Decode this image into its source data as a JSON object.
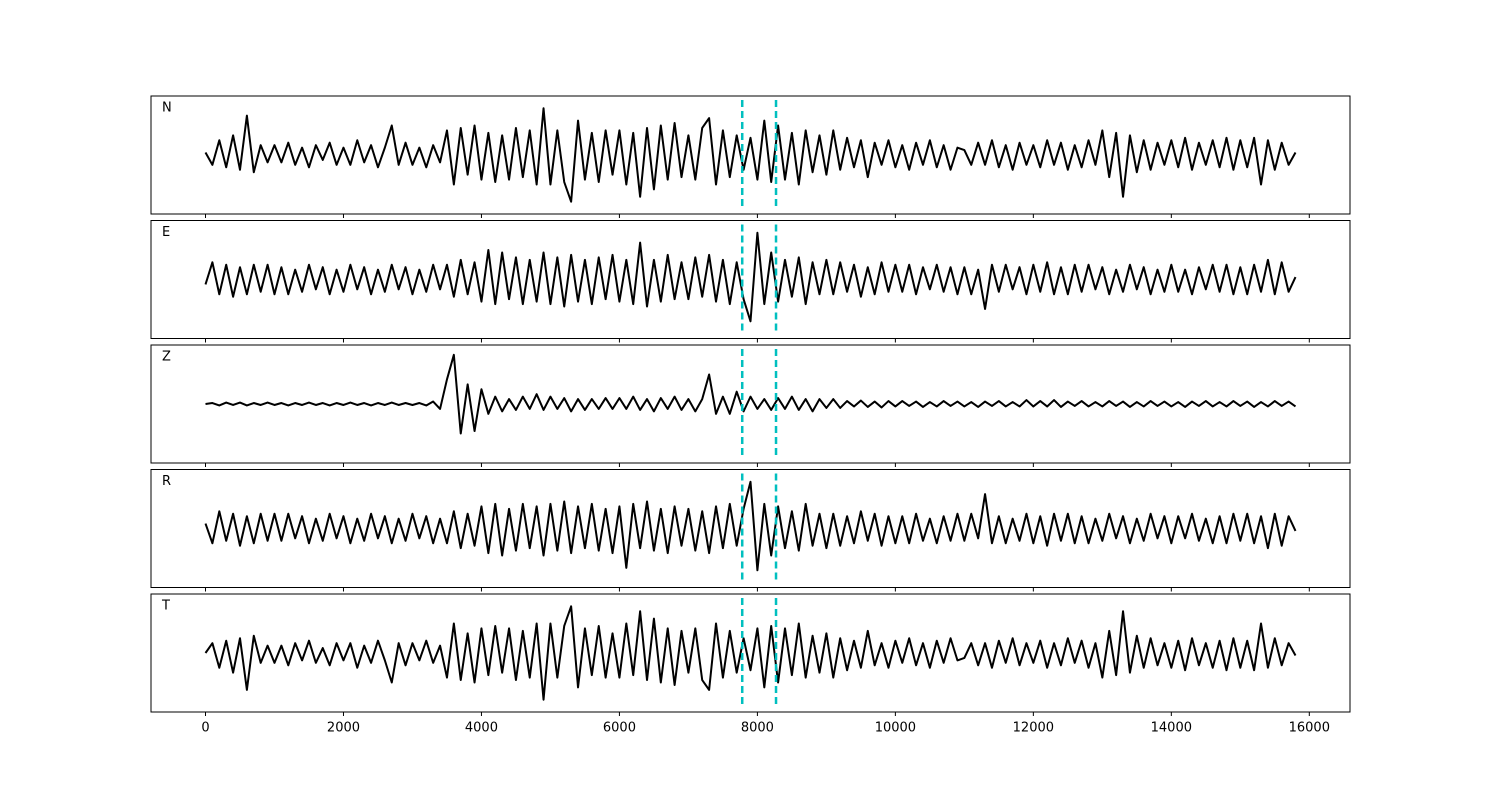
{
  "chart_data": {
    "type": "line",
    "subplots": true,
    "x": [
      0,
      100,
      200,
      300,
      400,
      500,
      600,
      700,
      800,
      900,
      1000,
      1100,
      1200,
      1300,
      1400,
      1500,
      1600,
      1700,
      1800,
      1900,
      2000,
      2100,
      2200,
      2300,
      2400,
      2500,
      2600,
      2700,
      2800,
      2900,
      3000,
      3100,
      3200,
      3300,
      3400,
      3500,
      3600,
      3700,
      3800,
      3900,
      4000,
      4100,
      4200,
      4300,
      4400,
      4500,
      4600,
      4700,
      4800,
      4900,
      5000,
      5100,
      5200,
      5300,
      5400,
      5500,
      5600,
      5700,
      5800,
      5900,
      6000,
      6100,
      6200,
      6300,
      6400,
      6500,
      6600,
      6700,
      6800,
      6900,
      7000,
      7100,
      7200,
      7300,
      7400,
      7500,
      7600,
      7700,
      7800,
      7900,
      8000,
      8100,
      8200,
      8300,
      8400,
      8500,
      8600,
      8700,
      8800,
      8900,
      9000,
      9100,
      9200,
      9300,
      9400,
      9500,
      9600,
      9700,
      9800,
      9900,
      10000,
      10100,
      10200,
      10300,
      10400,
      10500,
      10600,
      10700,
      10800,
      10900,
      11000,
      11100,
      11200,
      11300,
      11400,
      11500,
      11600,
      11700,
      11800,
      11900,
      12000,
      12100,
      12200,
      12300,
      12400,
      12500,
      12600,
      12700,
      12800,
      12900,
      13000,
      13100,
      13200,
      13300,
      13400,
      13500,
      13600,
      13700,
      13800,
      13900,
      14000,
      14100,
      14200,
      14300,
      14400,
      14500,
      14600,
      14700,
      14800,
      14900,
      15000,
      15100,
      15200,
      15300,
      15400,
      15500,
      15600,
      15700,
      15800
    ],
    "series": [
      {
        "name": "N",
        "color": "#000000",
        "values": [
          0.05,
          -0.2,
          0.3,
          -0.25,
          0.4,
          -0.3,
          0.8,
          -0.35,
          0.2,
          -0.15,
          0.2,
          -0.15,
          0.25,
          -0.2,
          0.15,
          -0.25,
          0.2,
          -0.1,
          0.25,
          -0.2,
          0.15,
          -0.2,
          0.3,
          -0.15,
          0.2,
          -0.25,
          0.15,
          0.6,
          -0.2,
          0.25,
          -0.2,
          0.15,
          -0.25,
          0.2,
          -0.15,
          0.5,
          -0.6,
          0.55,
          -0.4,
          0.6,
          -0.5,
          0.45,
          -0.55,
          0.4,
          -0.5,
          0.55,
          -0.45,
          0.5,
          -0.6,
          0.95,
          -0.6,
          0.5,
          -0.55,
          -0.95,
          0.7,
          -0.5,
          0.45,
          -0.55,
          0.5,
          -0.4,
          0.5,
          -0.6,
          0.45,
          -0.85,
          0.55,
          -0.7,
          0.6,
          -0.5,
          0.65,
          -0.45,
          0.4,
          -0.5,
          0.55,
          0.75,
          -0.6,
          0.5,
          -0.45,
          0.4,
          -0.3,
          0.35,
          -0.5,
          0.7,
          -0.55,
          0.6,
          -0.5,
          0.45,
          -0.6,
          0.5,
          -0.35,
          0.4,
          -0.4,
          0.5,
          -0.3,
          0.35,
          -0.25,
          0.3,
          -0.45,
          0.25,
          -0.2,
          0.3,
          -0.25,
          0.2,
          -0.3,
          0.25,
          -0.2,
          0.3,
          -0.25,
          0.2,
          -0.3,
          0.15,
          0.1,
          -0.2,
          0.25,
          -0.2,
          0.3,
          -0.25,
          0.2,
          -0.3,
          0.25,
          -0.2,
          0.2,
          -0.25,
          0.3,
          -0.2,
          0.25,
          -0.3,
          0.2,
          -0.25,
          0.3,
          -0.2,
          0.5,
          -0.45,
          0.45,
          -0.85,
          0.4,
          -0.35,
          0.3,
          -0.3,
          0.25,
          -0.2,
          0.3,
          -0.25,
          0.35,
          -0.3,
          0.25,
          -0.2,
          0.3,
          -0.25,
          0.35,
          -0.3,
          0.3,
          -0.25,
          0.35,
          -0.6,
          0.3,
          -0.3,
          0.25,
          -0.2,
          0.05
        ]
      },
      {
        "name": "E",
        "color": "#000000",
        "values": [
          -0.1,
          0.35,
          -0.3,
          0.3,
          -0.35,
          0.25,
          -0.3,
          0.3,
          -0.25,
          0.3,
          -0.3,
          0.25,
          -0.3,
          0.2,
          -0.25,
          0.3,
          -0.2,
          0.25,
          -0.3,
          0.2,
          -0.25,
          0.3,
          -0.2,
          0.25,
          -0.3,
          0.2,
          -0.25,
          0.3,
          -0.2,
          0.25,
          -0.3,
          0.2,
          -0.25,
          0.3,
          -0.2,
          0.3,
          -0.35,
          0.4,
          -0.3,
          0.35,
          -0.45,
          0.6,
          -0.5,
          0.55,
          -0.4,
          0.45,
          -0.5,
          0.4,
          -0.45,
          0.55,
          -0.5,
          0.45,
          -0.55,
          0.5,
          -0.45,
          0.4,
          -0.5,
          0.45,
          -0.4,
          0.5,
          -0.45,
          0.4,
          -0.5,
          0.75,
          -0.55,
          0.4,
          -0.45,
          0.5,
          -0.4,
          0.35,
          -0.4,
          0.45,
          -0.35,
          0.5,
          -0.45,
          0.4,
          -0.5,
          0.35,
          -0.4,
          -0.85,
          0.95,
          -0.5,
          0.55,
          -0.45,
          0.4,
          -0.35,
          0.45,
          -0.5,
          0.35,
          -0.3,
          0.4,
          -0.3,
          0.35,
          -0.25,
          0.3,
          -0.35,
          0.25,
          -0.3,
          0.35,
          -0.25,
          0.3,
          -0.25,
          0.3,
          -0.3,
          0.25,
          -0.2,
          0.3,
          -0.25,
          0.25,
          -0.3,
          0.25,
          -0.3,
          0.2,
          -0.6,
          0.3,
          -0.25,
          0.3,
          -0.2,
          0.25,
          -0.3,
          0.3,
          -0.25,
          0.35,
          -0.3,
          0.25,
          -0.3,
          0.3,
          -0.25,
          0.3,
          -0.2,
          0.25,
          -0.3,
          0.2,
          -0.25,
          0.3,
          -0.2,
          0.25,
          -0.3,
          0.2,
          -0.25,
          0.3,
          -0.25,
          0.2,
          -0.3,
          0.25,
          -0.2,
          0.3,
          -0.25,
          0.3,
          -0.3,
          0.25,
          -0.3,
          0.3,
          -0.25,
          0.4,
          -0.3,
          0.35,
          -0.25,
          0.05
        ]
      },
      {
        "name": "Z",
        "color": "#000000",
        "values": [
          0,
          0.02,
          -0.03,
          0.03,
          -0.02,
          0.03,
          -0.03,
          0.02,
          -0.02,
          0.03,
          -0.02,
          0.02,
          -0.03,
          0.02,
          -0.02,
          0.03,
          -0.02,
          0.02,
          -0.03,
          0.02,
          -0.02,
          0.03,
          -0.02,
          0.02,
          -0.03,
          0.02,
          -0.02,
          0.03,
          -0.02,
          0.02,
          -0.02,
          0.02,
          -0.03,
          0.05,
          -0.1,
          0.5,
          1.0,
          -0.6,
          0.4,
          -0.55,
          0.3,
          -0.2,
          0.15,
          -0.15,
          0.1,
          -0.12,
          0.15,
          -0.1,
          0.2,
          -0.12,
          0.15,
          -0.1,
          0.12,
          -0.15,
          0.1,
          -0.12,
          0.1,
          -0.1,
          0.12,
          -0.1,
          0.12,
          -0.1,
          0.15,
          -0.12,
          0.1,
          -0.15,
          0.12,
          -0.1,
          0.15,
          -0.12,
          0.1,
          -0.15,
          0.1,
          0.6,
          -0.2,
          0.15,
          -0.2,
          0.25,
          -0.15,
          0.15,
          -0.1,
          0.1,
          -0.12,
          0.12,
          -0.1,
          0.15,
          -0.12,
          0.1,
          -0.15,
          0.1,
          -0.08,
          0.1,
          -0.08,
          0.06,
          -0.05,
          0.07,
          -0.06,
          0.05,
          -0.07,
          0.06,
          -0.05,
          0.06,
          -0.04,
          0.05,
          -0.06,
          0.04,
          -0.05,
          0.06,
          -0.04,
          0.05,
          -0.05,
          0.04,
          -0.06,
          0.05,
          -0.04,
          0.06,
          -0.05,
          0.04,
          -0.05,
          0.08,
          -0.05,
          0.06,
          -0.05,
          0.08,
          -0.06,
          0.05,
          -0.04,
          0.06,
          -0.05,
          0.04,
          -0.05,
          0.06,
          -0.04,
          0.05,
          -0.06,
          0.04,
          -0.05,
          0.06,
          -0.04,
          0.05,
          -0.05,
          0.04,
          -0.06,
          0.05,
          -0.04,
          0.06,
          -0.05,
          0.04,
          -0.05,
          0.06,
          -0.04,
          0.05,
          -0.06,
          0.04,
          -0.05,
          0.06,
          -0.04,
          0.05,
          -0.05
        ]
      },
      {
        "name": "R",
        "color": "#000000",
        "values": [
          0.1,
          -0.3,
          0.35,
          -0.25,
          0.3,
          -0.35,
          0.25,
          -0.3,
          0.3,
          -0.25,
          0.3,
          -0.25,
          0.3,
          -0.2,
          0.25,
          -0.3,
          0.2,
          -0.25,
          0.3,
          -0.2,
          0.25,
          -0.3,
          0.2,
          -0.25,
          0.3,
          -0.2,
          0.25,
          -0.3,
          0.2,
          -0.25,
          0.3,
          -0.2,
          0.25,
          -0.3,
          0.2,
          -0.3,
          0.35,
          -0.4,
          0.3,
          -0.35,
          0.45,
          -0.5,
          0.5,
          -0.55,
          0.4,
          -0.45,
          0.5,
          -0.4,
          0.45,
          -0.55,
          0.5,
          -0.45,
          0.55,
          -0.5,
          0.45,
          -0.4,
          0.5,
          -0.45,
          0.4,
          -0.5,
          0.45,
          -0.8,
          0.5,
          -0.4,
          0.55,
          -0.45,
          0.4,
          -0.5,
          0.45,
          -0.35,
          0.4,
          -0.45,
          0.35,
          -0.5,
          0.45,
          -0.4,
          0.5,
          -0.35,
          0.4,
          0.95,
          -0.85,
          0.5,
          -0.55,
          0.45,
          -0.4,
          0.35,
          -0.45,
          0.5,
          -0.35,
          0.3,
          -0.4,
          0.3,
          -0.35,
          0.25,
          -0.3,
          0.35,
          -0.25,
          0.3,
          -0.35,
          0.25,
          -0.3,
          0.25,
          -0.3,
          0.3,
          -0.25,
          0.2,
          -0.3,
          0.25,
          -0.25,
          0.3,
          -0.25,
          0.3,
          -0.2,
          0.7,
          -0.3,
          0.25,
          -0.3,
          0.2,
          -0.25,
          0.3,
          -0.3,
          0.25,
          -0.35,
          0.3,
          -0.25,
          0.3,
          -0.3,
          0.25,
          -0.3,
          0.2,
          -0.25,
          0.3,
          -0.2,
          0.25,
          -0.3,
          0.2,
          -0.25,
          0.3,
          -0.2,
          0.25,
          -0.3,
          0.25,
          -0.2,
          0.3,
          -0.25,
          0.2,
          -0.3,
          0.25,
          -0.3,
          0.3,
          -0.25,
          0.3,
          -0.3,
          0.25,
          -0.4,
          0.3,
          -0.35,
          0.25,
          -0.05
        ]
      },
      {
        "name": "T",
        "color": "#000000",
        "values": [
          0,
          0.2,
          -0.3,
          0.25,
          -0.4,
          0.3,
          -0.75,
          0.35,
          -0.2,
          0.15,
          -0.2,
          0.15,
          -0.25,
          0.2,
          -0.15,
          0.25,
          -0.2,
          0.1,
          -0.25,
          0.2,
          -0.15,
          0.2,
          -0.3,
          0.15,
          -0.2,
          0.25,
          -0.15,
          -0.6,
          0.2,
          -0.25,
          0.2,
          -0.15,
          0.25,
          -0.2,
          0.15,
          -0.5,
          0.6,
          -0.55,
          0.4,
          -0.6,
          0.5,
          -0.45,
          0.55,
          -0.4,
          0.5,
          -0.55,
          0.45,
          -0.5,
          0.6,
          -0.95,
          0.6,
          -0.5,
          0.55,
          0.95,
          -0.7,
          0.5,
          -0.45,
          0.55,
          -0.5,
          0.4,
          -0.5,
          0.6,
          -0.45,
          0.85,
          -0.55,
          0.7,
          -0.6,
          0.5,
          -0.65,
          0.45,
          -0.4,
          0.5,
          -0.55,
          -0.75,
          0.6,
          -0.5,
          0.45,
          -0.4,
          0.3,
          -0.35,
          0.5,
          -0.7,
          0.55,
          -0.6,
          0.5,
          -0.45,
          0.6,
          -0.5,
          0.35,
          -0.4,
          0.4,
          -0.5,
          0.3,
          -0.35,
          0.25,
          -0.3,
          0.45,
          -0.25,
          0.2,
          -0.3,
          0.25,
          -0.2,
          0.3,
          -0.25,
          0.2,
          -0.3,
          0.25,
          -0.2,
          0.3,
          -0.15,
          -0.1,
          0.2,
          -0.25,
          0.2,
          -0.3,
          0.25,
          -0.2,
          0.3,
          -0.25,
          0.2,
          -0.2,
          0.25,
          -0.3,
          0.2,
          -0.25,
          0.3,
          -0.2,
          0.25,
          -0.3,
          0.2,
          -0.5,
          0.45,
          -0.45,
          0.85,
          -0.4,
          0.35,
          -0.3,
          0.3,
          -0.25,
          0.2,
          -0.3,
          0.25,
          -0.35,
          0.3,
          -0.25,
          0.2,
          -0.3,
          0.25,
          -0.35,
          0.3,
          -0.3,
          0.25,
          -0.35,
          0.6,
          -0.3,
          0.3,
          -0.25,
          0.2,
          -0.05
        ]
      }
    ],
    "xlim": [
      -790,
      16590
    ],
    "xticks": [
      0,
      2000,
      4000,
      6000,
      8000,
      10000,
      12000,
      14000,
      16000
    ],
    "ylim": [
      -1.2,
      1.2
    ],
    "vlines": [
      7780,
      8270
    ],
    "vline_color": "#00bfbf"
  }
}
